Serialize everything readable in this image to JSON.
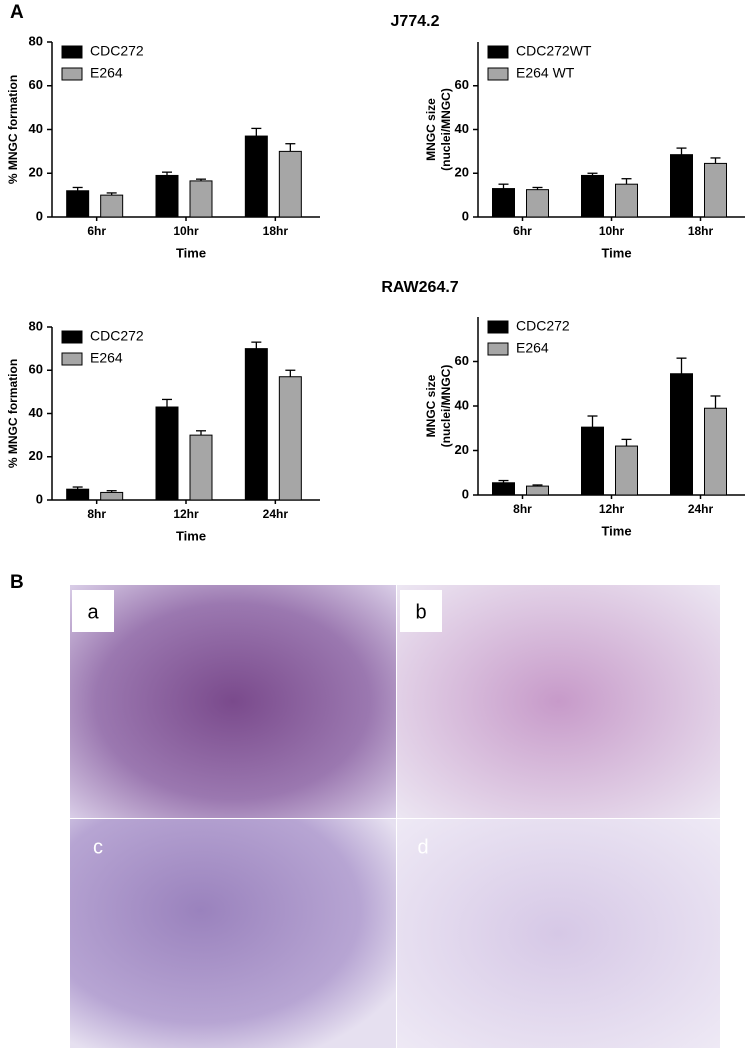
{
  "figure": {
    "panel_labels": [
      "A",
      "B"
    ],
    "section_titles": [
      "J774.2",
      "RAW264.7"
    ],
    "image_labels": [
      "a",
      "b",
      "c",
      "d"
    ]
  },
  "chart_data": [
    {
      "type": "bar",
      "ylabel_lines": [
        "% MNGC formation"
      ],
      "xlabel": "Time",
      "categories": [
        "6hr",
        "10hr",
        "18hr"
      ],
      "ylim": [
        0,
        80
      ],
      "yticks": [
        0,
        20,
        40,
        60,
        80
      ],
      "series": [
        {
          "name": "CDC272",
          "color": "#000000",
          "values": [
            12,
            19,
            37
          ],
          "errors": [
            1.5,
            1.5,
            3.5
          ]
        },
        {
          "name": "E264",
          "color": "#a6a6a6",
          "values": [
            10,
            16.5,
            30
          ],
          "errors": [
            1,
            0.8,
            3.5
          ]
        }
      ]
    },
    {
      "type": "bar",
      "ylabel_lines": [
        "MNGC size",
        "(nuclei/MNGC)"
      ],
      "xlabel": "Time",
      "categories": [
        "6hr",
        "10hr",
        "18hr"
      ],
      "ylim": [
        0,
        80
      ],
      "yticks": [
        0,
        20,
        40,
        60
      ],
      "series": [
        {
          "name": "CDC272WT",
          "color": "#000000",
          "values": [
            13,
            19,
            28.5
          ],
          "errors": [
            2,
            1,
            3
          ]
        },
        {
          "name": "E264 WT",
          "color": "#a6a6a6",
          "values": [
            12.5,
            15,
            24.5
          ],
          "errors": [
            1,
            2.5,
            2.5
          ]
        }
      ]
    },
    {
      "type": "bar",
      "ylabel_lines": [
        "% MNGC formation"
      ],
      "xlabel": "Time",
      "categories": [
        "8hr",
        "12hr",
        "24hr"
      ],
      "ylim": [
        0,
        80
      ],
      "yticks": [
        0,
        20,
        40,
        60,
        80
      ],
      "series": [
        {
          "name": "CDC272",
          "color": "#000000",
          "values": [
            5,
            43,
            70
          ],
          "errors": [
            1,
            3.5,
            3
          ]
        },
        {
          "name": "E264",
          "color": "#a6a6a6",
          "values": [
            3.5,
            30,
            57
          ],
          "errors": [
            0.8,
            2,
            3
          ]
        }
      ]
    },
    {
      "type": "bar",
      "ylabel_lines": [
        "MNGC size",
        "(nuclei/MNGC)"
      ],
      "xlabel": "Time",
      "categories": [
        "8hr",
        "12hr",
        "24hr"
      ],
      "ylim": [
        0,
        80
      ],
      "yticks": [
        0,
        20,
        40,
        60
      ],
      "series": [
        {
          "name": "CDC272",
          "color": "#000000",
          "values": [
            5.5,
            30.5,
            54.5
          ],
          "errors": [
            1,
            5,
            7
          ]
        },
        {
          "name": "E264",
          "color": "#a6a6a6",
          "values": [
            4,
            22,
            39
          ],
          "errors": [
            0.5,
            3,
            5.5
          ]
        }
      ]
    }
  ]
}
